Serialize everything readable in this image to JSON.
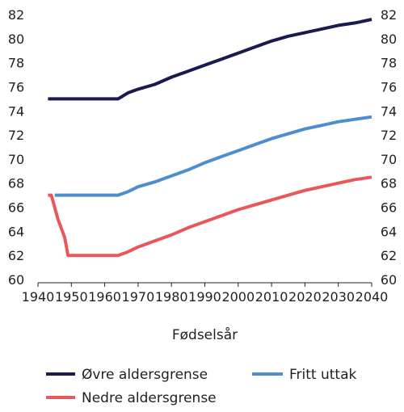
{
  "chart_data": {
    "type": "line",
    "title": "",
    "xlabel": "Fødselsår",
    "ylabel": "",
    "xlim": [
      1940,
      2040
    ],
    "ylim": [
      60,
      82
    ],
    "x_ticks": [
      "1940",
      "1950",
      "1960",
      "1970",
      "1980",
      "1990",
      "2000",
      "2010",
      "2020",
      "2030",
      "2040"
    ],
    "y_ticks": [
      "60",
      "62",
      "64",
      "66",
      "68",
      "70",
      "72",
      "74",
      "76",
      "78",
      "80",
      "82"
    ],
    "grid": false,
    "legend_position": "bottom",
    "series": [
      {
        "name": "Øvre aldersgrense",
        "color": "#1b1a4f",
        "points": [
          [
            1943,
            75
          ],
          [
            1964,
            75
          ],
          [
            1967,
            75.5
          ],
          [
            1970,
            75.8
          ],
          [
            1975,
            76.2
          ],
          [
            1980,
            76.8
          ],
          [
            1985,
            77.3
          ],
          [
            1990,
            77.8
          ],
          [
            1995,
            78.3
          ],
          [
            2000,
            78.8
          ],
          [
            2005,
            79.3
          ],
          [
            2010,
            79.8
          ],
          [
            2015,
            80.2
          ],
          [
            2020,
            80.5
          ],
          [
            2025,
            80.8
          ],
          [
            2030,
            81.1
          ],
          [
            2035,
            81.3
          ],
          [
            2040,
            81.6
          ]
        ]
      },
      {
        "name": "Fritt uttak",
        "color": "#4e8ecf",
        "points": [
          [
            1945,
            67
          ],
          [
            1964,
            67
          ],
          [
            1967,
            67.3
          ],
          [
            1970,
            67.7
          ],
          [
            1975,
            68.1
          ],
          [
            1980,
            68.6
          ],
          [
            1985,
            69.1
          ],
          [
            1990,
            69.7
          ],
          [
            1995,
            70.2
          ],
          [
            2000,
            70.7
          ],
          [
            2005,
            71.2
          ],
          [
            2010,
            71.7
          ],
          [
            2015,
            72.1
          ],
          [
            2020,
            72.5
          ],
          [
            2025,
            72.8
          ],
          [
            2030,
            73.1
          ],
          [
            2035,
            73.3
          ],
          [
            2040,
            73.5
          ]
        ]
      },
      {
        "name": "Nedre aldersgrense",
        "color": "#e8585a",
        "points": [
          [
            1943,
            67
          ],
          [
            1944,
            67
          ],
          [
            1946,
            65
          ],
          [
            1948,
            63.5
          ],
          [
            1949,
            62
          ],
          [
            1964,
            62
          ],
          [
            1967,
            62.3
          ],
          [
            1970,
            62.7
          ],
          [
            1975,
            63.2
          ],
          [
            1980,
            63.7
          ],
          [
            1985,
            64.3
          ],
          [
            1990,
            64.8
          ],
          [
            1995,
            65.3
          ],
          [
            2000,
            65.8
          ],
          [
            2005,
            66.2
          ],
          [
            2010,
            66.6
          ],
          [
            2015,
            67
          ],
          [
            2020,
            67.4
          ],
          [
            2025,
            67.7
          ],
          [
            2030,
            68
          ],
          [
            2035,
            68.3
          ],
          [
            2040,
            68.5
          ]
        ]
      }
    ]
  }
}
